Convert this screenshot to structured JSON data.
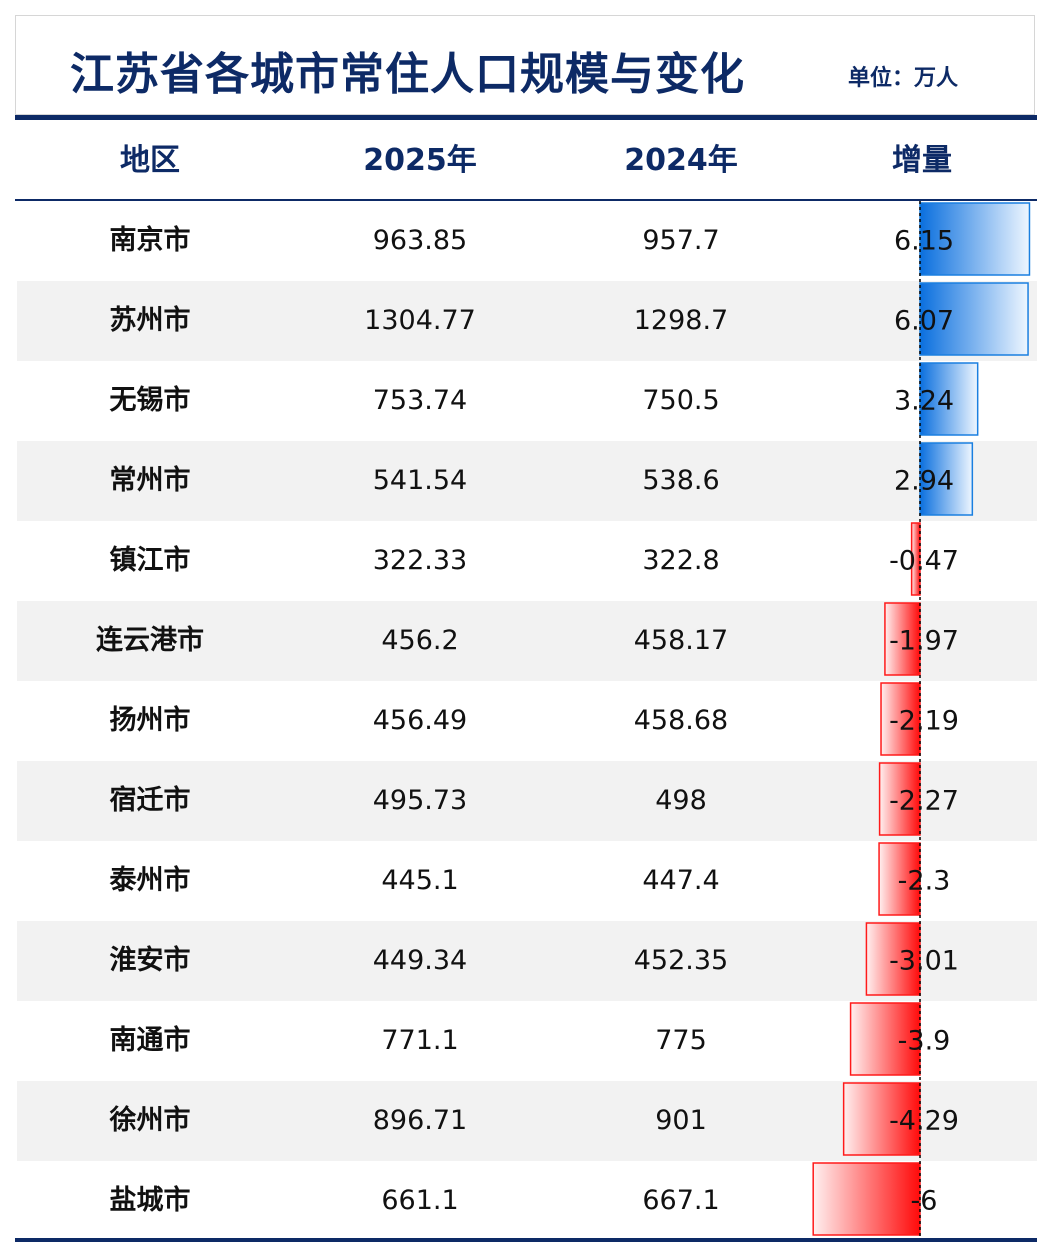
{
  "title": "江苏省各城市常住人口规模与变化",
  "unit": "单位：万人",
  "headers": {
    "region": "地区",
    "y2025": "2025年",
    "y2024": "2024年",
    "change": "增量"
  },
  "colors": {
    "navy": "#0d2a66",
    "positive": "#1a7fe0",
    "negative": "#ff1a1a",
    "stripe": "#f2f2f2"
  },
  "chart_data": {
    "type": "table",
    "columns": [
      "地区",
      "2025年",
      "2024年",
      "增量"
    ],
    "rows": [
      {
        "city": "南京市",
        "y2025": "963.85",
        "y2024": "957.7",
        "change": 6.15,
        "change_label": "6.15"
      },
      {
        "city": "苏州市",
        "y2025": "1304.77",
        "y2024": "1298.7",
        "change": 6.07,
        "change_label": "6.07"
      },
      {
        "city": "无锡市",
        "y2025": "753.74",
        "y2024": "750.5",
        "change": 3.24,
        "change_label": "3.24"
      },
      {
        "city": "常州市",
        "y2025": "541.54",
        "y2024": "538.6",
        "change": 2.94,
        "change_label": "2.94"
      },
      {
        "city": "镇江市",
        "y2025": "322.33",
        "y2024": "322.8",
        "change": -0.47,
        "change_label": "-0.47"
      },
      {
        "city": "连云港市",
        "y2025": "456.2",
        "y2024": "458.17",
        "change": -1.97,
        "change_label": "-1.97"
      },
      {
        "city": "扬州市",
        "y2025": "456.49",
        "y2024": "458.68",
        "change": -2.19,
        "change_label": "-2.19"
      },
      {
        "city": "宿迁市",
        "y2025": "495.73",
        "y2024": "498",
        "change": -2.27,
        "change_label": "-2.27"
      },
      {
        "city": "泰州市",
        "y2025": "445.1",
        "y2024": "447.4",
        "change": -2.3,
        "change_label": "-2.3"
      },
      {
        "city": "淮安市",
        "y2025": "449.34",
        "y2024": "452.35",
        "change": -3.01,
        "change_label": "-3.01"
      },
      {
        "city": "南通市",
        "y2025": "771.1",
        "y2024": "775",
        "change": -3.9,
        "change_label": "-3.9"
      },
      {
        "city": "徐州市",
        "y2025": "896.71",
        "y2024": "901",
        "change": -4.29,
        "change_label": "-4.29"
      },
      {
        "city": "盐城市",
        "y2025": "661.1",
        "y2024": "667.1",
        "change": -6,
        "change_label": "-6"
      }
    ]
  }
}
